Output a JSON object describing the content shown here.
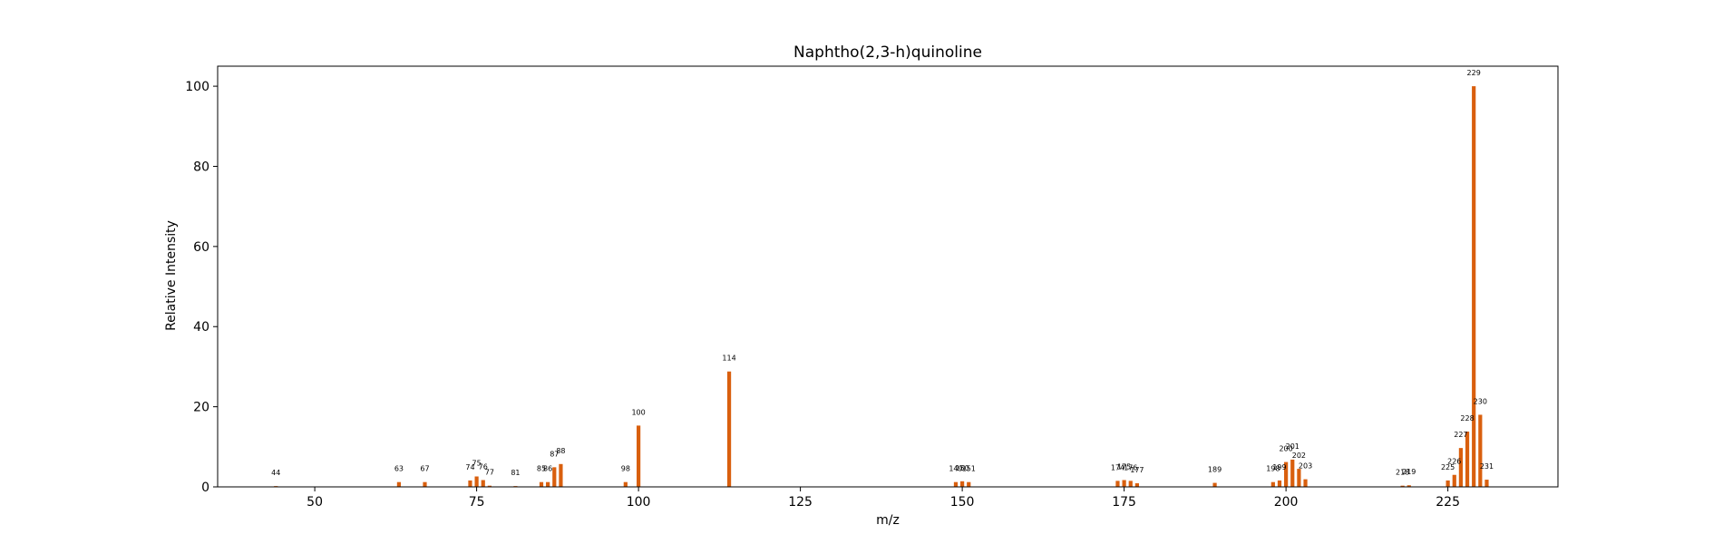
{
  "chart_data": {
    "type": "bar",
    "title": "Naphtho(2,3-h)quinoline",
    "xlabel": "m/z",
    "ylabel": "Relative Intensity",
    "xlim": [
      35,
      242
    ],
    "ylim": [
      0,
      105
    ],
    "xticks": [
      50,
      75,
      100,
      125,
      150,
      175,
      200,
      225
    ],
    "yticks": [
      0,
      20,
      40,
      60,
      80,
      100
    ],
    "grid": false,
    "bar_color": "#d95f0e",
    "peaks": [
      {
        "mz": 44,
        "intensity": 0.2
      },
      {
        "mz": 63,
        "intensity": 1.2
      },
      {
        "mz": 67,
        "intensity": 1.2
      },
      {
        "mz": 74,
        "intensity": 1.6
      },
      {
        "mz": 75,
        "intensity": 2.6
      },
      {
        "mz": 76,
        "intensity": 1.7
      },
      {
        "mz": 77,
        "intensity": 0.3
      },
      {
        "mz": 81,
        "intensity": 0.2
      },
      {
        "mz": 85,
        "intensity": 1.2
      },
      {
        "mz": 86,
        "intensity": 1.2
      },
      {
        "mz": 87,
        "intensity": 4.9
      },
      {
        "mz": 88,
        "intensity": 5.7
      },
      {
        "mz": 98,
        "intensity": 1.2
      },
      {
        "mz": 100,
        "intensity": 15.3
      },
      {
        "mz": 114,
        "intensity": 28.8
      },
      {
        "mz": 149,
        "intensity": 1.2
      },
      {
        "mz": 150,
        "intensity": 1.4
      },
      {
        "mz": 151,
        "intensity": 1.2
      },
      {
        "mz": 174,
        "intensity": 1.5
      },
      {
        "mz": 175,
        "intensity": 1.7
      },
      {
        "mz": 176,
        "intensity": 1.5
      },
      {
        "mz": 177,
        "intensity": 0.9
      },
      {
        "mz": 189,
        "intensity": 1.0
      },
      {
        "mz": 198,
        "intensity": 1.2
      },
      {
        "mz": 199,
        "intensity": 1.6
      },
      {
        "mz": 200,
        "intensity": 6.2
      },
      {
        "mz": 201,
        "intensity": 6.8
      },
      {
        "mz": 202,
        "intensity": 4.5
      },
      {
        "mz": 203,
        "intensity": 1.9
      },
      {
        "mz": 218,
        "intensity": 0.3
      },
      {
        "mz": 219,
        "intensity": 0.4
      },
      {
        "mz": 225,
        "intensity": 1.6
      },
      {
        "mz": 226,
        "intensity": 3.0
      },
      {
        "mz": 227,
        "intensity": 9.7
      },
      {
        "mz": 228,
        "intensity": 13.8
      },
      {
        "mz": 229,
        "intensity": 100
      },
      {
        "mz": 230,
        "intensity": 18.0
      },
      {
        "mz": 231,
        "intensity": 1.8
      }
    ]
  }
}
